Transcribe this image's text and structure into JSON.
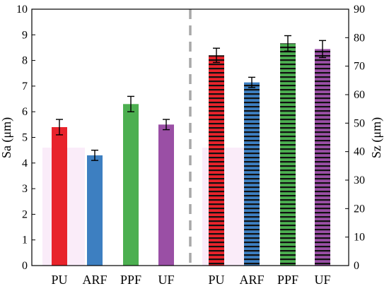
{
  "chart_data": {
    "type": "bar",
    "left_axis": {
      "label": "Sa (μm)",
      "ylim": [
        0,
        10
      ],
      "ticks": [
        "0",
        "1",
        "2",
        "3",
        "4",
        "5",
        "6",
        "7",
        "8",
        "9",
        "10"
      ]
    },
    "right_axis": {
      "label": "Sz (μm)",
      "ylim": [
        0,
        90
      ],
      "ticks": [
        "0",
        "10",
        "20",
        "30",
        "40",
        "50",
        "60",
        "70",
        "80",
        "90"
      ]
    },
    "grid": false,
    "divider": "dashed vertical line between groups",
    "groups": [
      {
        "axis": "left",
        "pattern": "solid",
        "categories": [
          "PU",
          "ARF",
          "PPF",
          "UF"
        ],
        "values": [
          5.4,
          4.3,
          6.3,
          5.5
        ],
        "errors": [
          0.3,
          0.2,
          0.3,
          0.2
        ]
      },
      {
        "axis": "right",
        "pattern": "horizontal hatch",
        "categories": [
          "PU",
          "ARF",
          "PPF",
          "UF"
        ],
        "values": [
          73.8,
          64.3,
          78.0,
          76.0
        ],
        "errors": [
          2.5,
          1.8,
          2.7,
          3.0
        ]
      }
    ],
    "colors": {
      "PU": "#e8232b",
      "ARF": "#3d7fc1",
      "PPF": "#4caf50",
      "UF": "#9a4fa5",
      "divider": "#a8a8a8",
      "shadow": "#f7e0f5"
    }
  }
}
